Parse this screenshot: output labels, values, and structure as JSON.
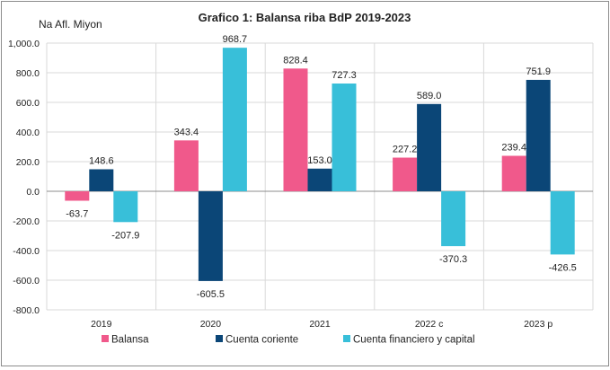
{
  "chart_data": {
    "type": "bar",
    "title": "Grafico 1: Balansa riba BdP 2019-2023",
    "ylabel": "Na Afl. Miyon",
    "xlabel": "",
    "ylim": [
      -800,
      1000
    ],
    "ytick_step": 200,
    "ytick_labels": [
      "1,000.0",
      "800.0",
      "600.0",
      "400.0",
      "200.0",
      "0.0",
      "-200.0",
      "-400.0",
      "-600.0",
      "-800.0"
    ],
    "categories": [
      "2019",
      "2020",
      "2021",
      "2022 c",
      "2023 p"
    ],
    "grid": true,
    "legend_position": "bottom",
    "series": [
      {
        "name": "Balansa",
        "color": "#f0598b",
        "values": [
          -63.7,
          343.4,
          828.4,
          227.2,
          239.4
        ],
        "labels": [
          "-63.7",
          "343.4",
          "828.4",
          "227.2",
          "239.4"
        ]
      },
      {
        "name": "Cuenta coriente",
        "color": "#0b4677",
        "values": [
          148.6,
          -605.5,
          153.0,
          589.0,
          751.9
        ],
        "labels": [
          "148.6",
          "-605.5",
          "153.0",
          "589.0",
          "751.9"
        ]
      },
      {
        "name": "Cuenta financiero y capital",
        "color": "#38bfd9",
        "values": [
          -207.9,
          968.7,
          727.3,
          -370.3,
          -426.5
        ],
        "labels": [
          "-207.9",
          "968.7",
          "727.3",
          "-370.3",
          "-426.5"
        ]
      }
    ]
  }
}
